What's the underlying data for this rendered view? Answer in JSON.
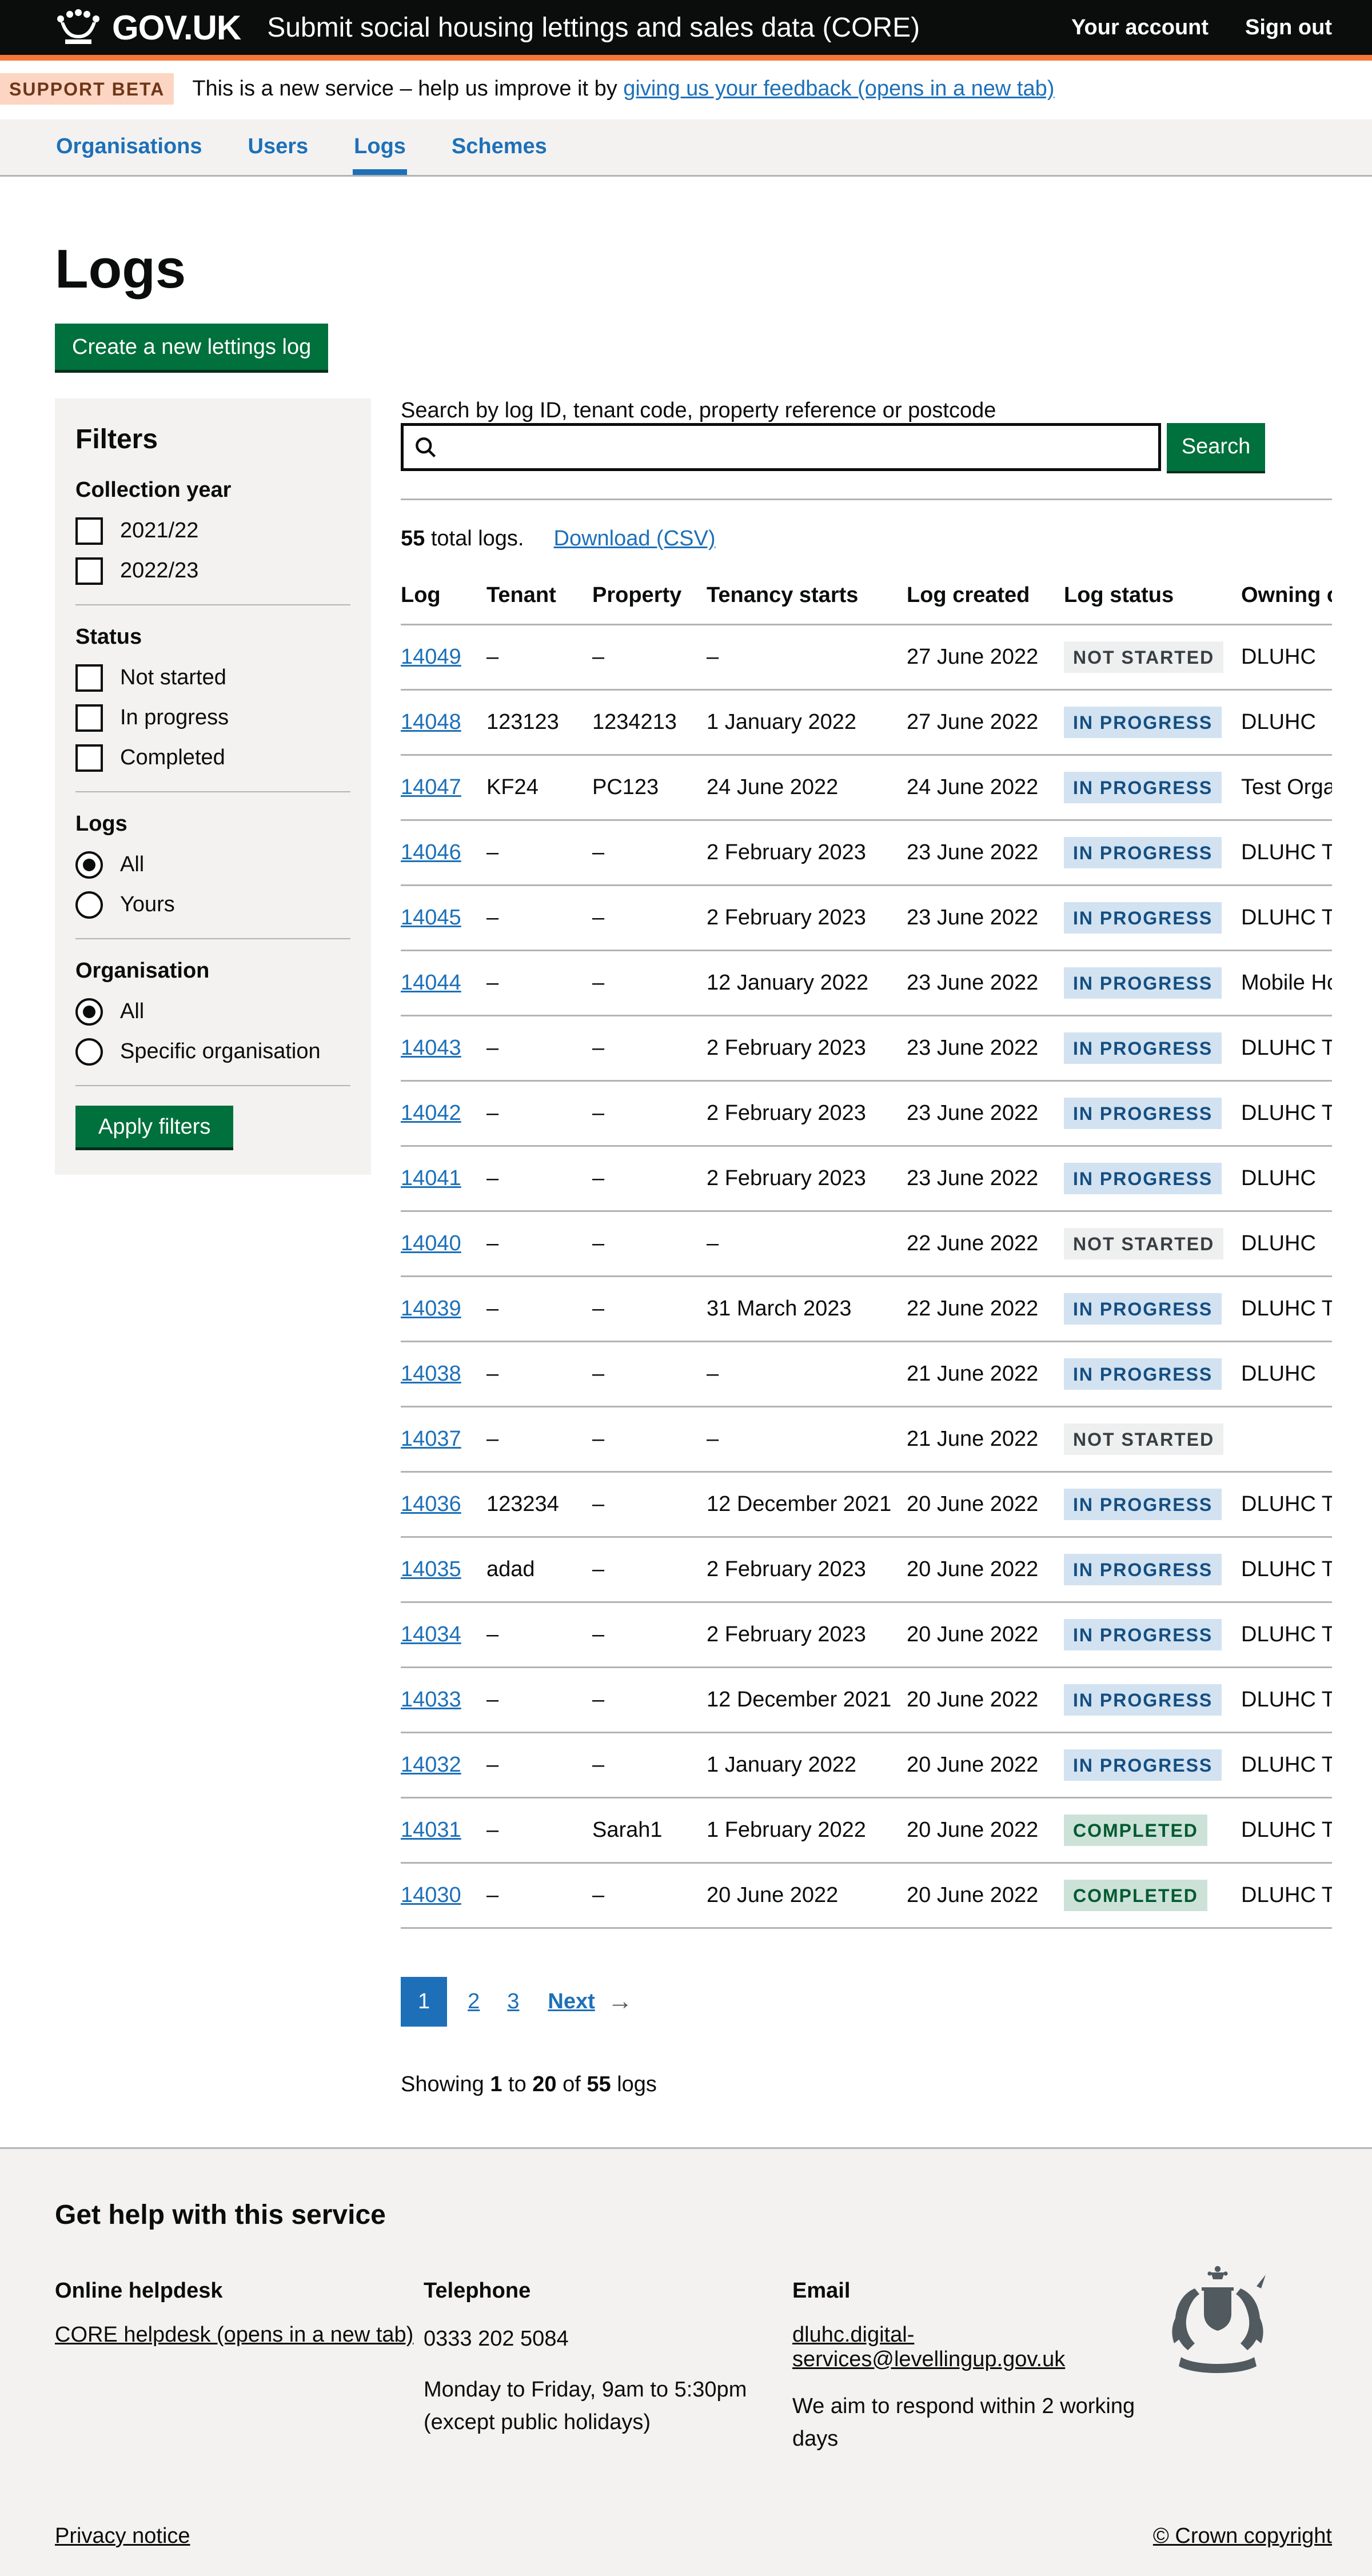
{
  "header": {
    "logo_text": "GOV.UK",
    "service_name": "Submit social housing lettings and sales data (CORE)",
    "account_link": "Your account",
    "signout_link": "Sign out"
  },
  "phase_banner": {
    "tag": "SUPPORT BETA",
    "text_before_link": "This is a new service – help us improve it by ",
    "link_text": "giving us your feedback (opens in a new tab)"
  },
  "nav": {
    "items": [
      {
        "label": "Organisations",
        "active": false
      },
      {
        "label": "Users",
        "active": false
      },
      {
        "label": "Logs",
        "active": true
      },
      {
        "label": "Schemes",
        "active": false
      }
    ]
  },
  "page": {
    "title": "Logs",
    "create_button": "Create a new lettings log"
  },
  "filters": {
    "title": "Filters",
    "apply_button": "Apply filters",
    "groups": [
      {
        "label": "Collection year",
        "type": "checkbox",
        "options": [
          {
            "label": "2021/22",
            "checked": false
          },
          {
            "label": "2022/23",
            "checked": false
          }
        ]
      },
      {
        "label": "Status",
        "type": "checkbox",
        "options": [
          {
            "label": "Not started",
            "checked": false
          },
          {
            "label": "In progress",
            "checked": false
          },
          {
            "label": "Completed",
            "checked": false
          }
        ]
      },
      {
        "label": "Logs",
        "type": "radio",
        "options": [
          {
            "label": "All",
            "checked": true
          },
          {
            "label": "Yours",
            "checked": false
          }
        ]
      },
      {
        "label": "Organisation",
        "type": "radio",
        "options": [
          {
            "label": "All",
            "checked": true
          },
          {
            "label": "Specific organisation",
            "checked": false
          }
        ]
      }
    ]
  },
  "search": {
    "label": "Search by log ID, tenant code, property reference or postcode",
    "value": "",
    "placeholder": "",
    "button": "Search"
  },
  "results": {
    "total_bold": "55",
    "total_rest": " total logs.",
    "download_link": "Download (CSV)"
  },
  "table": {
    "headers": [
      "Log",
      "Tenant",
      "Property",
      "Tenancy starts",
      "Log created",
      "Log status",
      "Owning organisation"
    ],
    "rows": [
      {
        "log": "14049",
        "tenant": "–",
        "property": "–",
        "tenancy_starts": "–",
        "log_created": "27 June 2022",
        "status": "NOT STARTED",
        "status_color": "grey",
        "owning": "DLUHC"
      },
      {
        "log": "14048",
        "tenant": "123123",
        "property": "1234213",
        "tenancy_starts": "1 January 2022",
        "log_created": "27 June 2022",
        "status": "IN PROGRESS",
        "status_color": "blue",
        "owning": "DLUHC"
      },
      {
        "log": "14047",
        "tenant": "KF24",
        "property": "PC123",
        "tenancy_starts": "24 June 2022",
        "log_created": "24 June 2022",
        "status": "IN PROGRESS",
        "status_color": "blue",
        "owning": "Test Organis"
      },
      {
        "log": "14046",
        "tenant": "–",
        "property": "–",
        "tenancy_starts": "2 February 2023",
        "log_created": "23 June 2022",
        "status": "IN PROGRESS",
        "status_color": "blue",
        "owning": "DLUHC Tes"
      },
      {
        "log": "14045",
        "tenant": "–",
        "property": "–",
        "tenancy_starts": "2 February 2023",
        "log_created": "23 June 2022",
        "status": "IN PROGRESS",
        "status_color": "blue",
        "owning": "DLUHC Tes"
      },
      {
        "log": "14044",
        "tenant": "–",
        "property": "–",
        "tenancy_starts": "12 January 2022",
        "log_created": "23 June 2022",
        "status": "IN PROGRESS",
        "status_color": "blue",
        "owning": "Mobile Hou"
      },
      {
        "log": "14043",
        "tenant": "–",
        "property": "–",
        "tenancy_starts": "2 February 2023",
        "log_created": "23 June 2022",
        "status": "IN PROGRESS",
        "status_color": "blue",
        "owning": "DLUHC Tes"
      },
      {
        "log": "14042",
        "tenant": "–",
        "property": "–",
        "tenancy_starts": "2 February 2023",
        "log_created": "23 June 2022",
        "status": "IN PROGRESS",
        "status_color": "blue",
        "owning": "DLUHC Tes"
      },
      {
        "log": "14041",
        "tenant": "–",
        "property": "–",
        "tenancy_starts": "2 February 2023",
        "log_created": "23 June 2022",
        "status": "IN PROGRESS",
        "status_color": "blue",
        "owning": "DLUHC"
      },
      {
        "log": "14040",
        "tenant": "–",
        "property": "–",
        "tenancy_starts": "–",
        "log_created": "22 June 2022",
        "status": "NOT STARTED",
        "status_color": "grey",
        "owning": "DLUHC"
      },
      {
        "log": "14039",
        "tenant": "–",
        "property": "–",
        "tenancy_starts": "31 March 2023",
        "log_created": "22 June 2022",
        "status": "IN PROGRESS",
        "status_color": "blue",
        "owning": "DLUHC Tes"
      },
      {
        "log": "14038",
        "tenant": "–",
        "property": "–",
        "tenancy_starts": "–",
        "log_created": "21 June 2022",
        "status": "IN PROGRESS",
        "status_color": "blue",
        "owning": "DLUHC"
      },
      {
        "log": "14037",
        "tenant": "–",
        "property": "–",
        "tenancy_starts": "–",
        "log_created": "21 June 2022",
        "status": "NOT STARTED",
        "status_color": "grey",
        "owning": ""
      },
      {
        "log": "14036",
        "tenant": "123234",
        "property": "–",
        "tenancy_starts": "12 December 2021",
        "log_created": "20 June 2022",
        "status": "IN PROGRESS",
        "status_color": "blue",
        "owning": "DLUHC Tes"
      },
      {
        "log": "14035",
        "tenant": "adad",
        "property": "–",
        "tenancy_starts": "2 February 2023",
        "log_created": "20 June 2022",
        "status": "IN PROGRESS",
        "status_color": "blue",
        "owning": "DLUHC Tes"
      },
      {
        "log": "14034",
        "tenant": "–",
        "property": "–",
        "tenancy_starts": "2 February 2023",
        "log_created": "20 June 2022",
        "status": "IN PROGRESS",
        "status_color": "blue",
        "owning": "DLUHC Tes"
      },
      {
        "log": "14033",
        "tenant": "–",
        "property": "–",
        "tenancy_starts": "12 December 2021",
        "log_created": "20 June 2022",
        "status": "IN PROGRESS",
        "status_color": "blue",
        "owning": "DLUHC Tes"
      },
      {
        "log": "14032",
        "tenant": "–",
        "property": "–",
        "tenancy_starts": "1 January 2022",
        "log_created": "20 June 2022",
        "status": "IN PROGRESS",
        "status_color": "blue",
        "owning": "DLUHC Tes"
      },
      {
        "log": "14031",
        "tenant": "–",
        "property": "Sarah1",
        "tenancy_starts": "1 February 2022",
        "log_created": "20 June 2022",
        "status": "COMPLETED",
        "status_color": "green",
        "owning": "DLUHC Tes"
      },
      {
        "log": "14030",
        "tenant": "–",
        "property": "–",
        "tenancy_starts": "20 June 2022",
        "log_created": "20 June 2022",
        "status": "COMPLETED",
        "status_color": "green",
        "owning": "DLUHC Tes"
      }
    ]
  },
  "pagination": {
    "pages": [
      {
        "label": "1",
        "current": true
      },
      {
        "label": "2",
        "current": false
      },
      {
        "label": "3",
        "current": false
      }
    ],
    "next_label": "Next",
    "next_arrow": "→"
  },
  "showing": {
    "prefix": "Showing ",
    "from": "1",
    "to_word": " to ",
    "to": "20",
    "of_word": " of ",
    "total": "55",
    "suffix": " logs"
  },
  "footer": {
    "title": "Get help with this service",
    "helpdesk_heading": "Online helpdesk",
    "helpdesk_link": "CORE helpdesk (opens in a new tab)",
    "telephone_heading": "Telephone",
    "telephone_number": "0333 202 5084",
    "telephone_hours": "Monday to Friday, 9am to 5:30pm",
    "telephone_note": "(except public holidays)",
    "email_heading": "Email",
    "email_link": "dluhc.digital-services@levellingup.gov.uk",
    "email_note": "We aim to respond within 2 working days",
    "privacy_link": "Privacy notice",
    "copyright_link": "© Crown copyright"
  },
  "colors": {
    "header_bg": "#0b0c0c",
    "accent_orange": "#f47738",
    "link_blue": "#1d70b8",
    "button_green": "#00703c",
    "panel_grey": "#f3f2f1",
    "border_grey": "#b1b4b6",
    "phase_tag_bg": "#fcd6c3",
    "phase_tag_text": "#6e3619",
    "tag_grey_bg": "#eeefef",
    "tag_grey_text": "#383f43",
    "tag_blue_bg": "#d2e2f1",
    "tag_blue_text": "#144e81",
    "tag_green_bg": "#cce2d8",
    "tag_green_text": "#005a30",
    "arms_grey": "#505a5f"
  }
}
